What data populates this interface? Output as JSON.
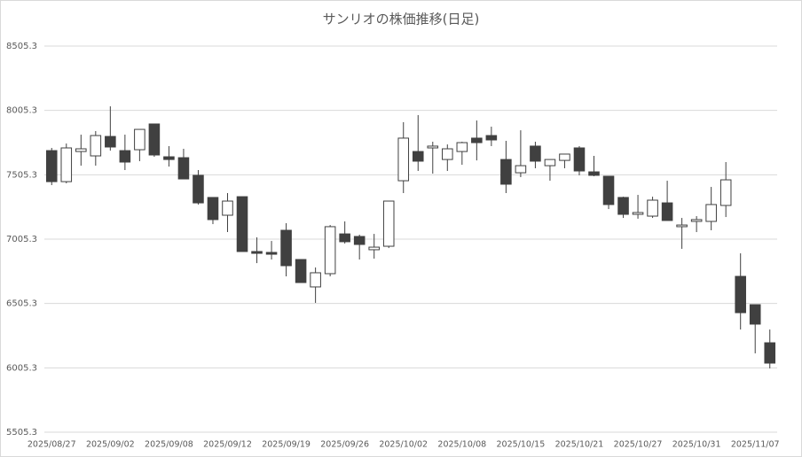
{
  "chart_data": {
    "type": "candlestick",
    "title": "サンリオの株価推移(日足)",
    "categories": [
      "2025/08/27",
      null,
      null,
      null,
      "2025/09/02",
      null,
      null,
      null,
      "2025/09/08",
      null,
      null,
      null,
      "2025/09/12",
      null,
      null,
      null,
      "2025/09/19",
      null,
      null,
      null,
      "2025/09/26",
      null,
      null,
      null,
      "2025/10/02",
      null,
      null,
      null,
      "2025/10/08",
      null,
      null,
      null,
      "2025/10/15",
      null,
      null,
      null,
      "2025/10/21",
      null,
      null,
      null,
      "2025/10/27",
      null,
      null,
      null,
      "2025/10/31",
      null,
      null,
      null,
      "2025/11/07",
      null
    ],
    "open": [
      7693,
      7452,
      7686,
      7652,
      7803,
      7693,
      7700,
      7900,
      7645,
      7638,
      7501,
      7329,
      7191,
      7335,
      6909,
      6902,
      7074,
      6847,
      6634,
      6737,
      7046,
      7026,
      6923,
      6950,
      7459,
      7686,
      7714,
      7624,
      7686,
      7790,
      7810,
      7624,
      7521,
      7728,
      7576,
      7617,
      7714,
      7528,
      7494,
      7329,
      7198,
      7184,
      7287,
      7102,
      7143,
      7143,
      7267,
      6716,
      6496,
      6200
    ],
    "high": [
      7714,
      7748,
      7817,
      7845,
      8037,
      7817,
      7858,
      7900,
      7728,
      7707,
      7542,
      7329,
      7363,
      7335,
      7019,
      6991,
      7129,
      6847,
      6785,
      7115,
      7143,
      7040,
      7046,
      7301,
      7914,
      7969,
      7762,
      7741,
      7762,
      7927,
      7879,
      7769,
      7851,
      7762,
      7624,
      7666,
      7728,
      7652,
      7494,
      7335,
      7349,
      7335,
      7459,
      7170,
      7184,
      7411,
      7604,
      6895,
      6496,
      6303
    ],
    "low": [
      7425,
      7439,
      7576,
      7576,
      7693,
      7542,
      7611,
      7645,
      7569,
      7473,
      7274,
      7122,
      7060,
      6909,
      6819,
      6847,
      6716,
      6668,
      6510,
      6716,
      6971,
      6847,
      6854,
      6936,
      7363,
      7535,
      7514,
      7535,
      7583,
      7617,
      7728,
      7363,
      7487,
      7556,
      7459,
      7556,
      7501,
      7494,
      7239,
      7170,
      7164,
      7170,
      7150,
      6930,
      7060,
      7074,
      7177,
      6303,
      6118,
      6001
    ],
    "close": [
      7452,
      7714,
      7707,
      7810,
      7721,
      7604,
      7858,
      7659,
      7624,
      7473,
      7287,
      7157,
      7301,
      6909,
      6895,
      6888,
      6799,
      6668,
      6744,
      7102,
      6985,
      6964,
      6943,
      7301,
      7790,
      7611,
      7728,
      7707,
      7755,
      7755,
      7776,
      7432,
      7576,
      7611,
      7624,
      7666,
      7535,
      7501,
      7274,
      7198,
      7212,
      7308,
      7150,
      7115,
      7157,
      7274,
      7466,
      6434,
      6345,
      6042
    ],
    "up_color": "#ffffff",
    "down_color": "#404040",
    "edge_color": "#404040",
    "ylim": [
      5505.3,
      8505.3
    ],
    "yticks": [
      5505.3,
      6005.3,
      6505.3,
      7005.3,
      7505.3,
      8005.3,
      8505.3
    ],
    "grid": true
  }
}
